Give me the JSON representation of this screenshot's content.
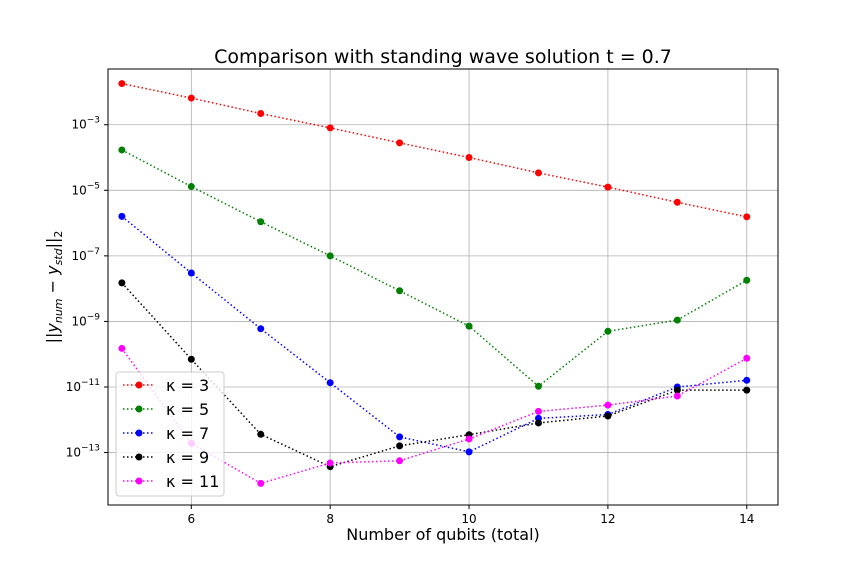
{
  "chart_data": {
    "type": "line",
    "title": "Comparison with standing wave solution t = 0.7",
    "xlabel": "Number of qubits (total)",
    "ylabel": "||y_num − y_std||₂",
    "yscale": "log",
    "xlim": [
      4.8,
      14.45
    ],
    "ylim_exp": [
      -14.6,
      -1.3
    ],
    "x_ticks": [
      6,
      8,
      10,
      12,
      14
    ],
    "y_tick_exponents": [
      -13,
      -11,
      -9,
      -7,
      -5,
      -3
    ],
    "grid": true,
    "legend_placement": "lower-left",
    "x": [
      5,
      6,
      7,
      8,
      9,
      10,
      11,
      12,
      13,
      14
    ],
    "series": [
      {
        "name": "κ = 3",
        "color": "#ff0000",
        "values": [
          0.018,
          0.0065,
          0.0022,
          0.0008,
          0.00028,
          0.0001,
          3.4e-05,
          1.25e-05,
          4.3e-06,
          1.55e-06
        ]
      },
      {
        "name": "κ = 5",
        "color": "#008000",
        "values": [
          0.00017,
          1.3e-05,
          1.1e-06,
          1e-07,
          8.6e-09,
          7.2e-10,
          1.05e-11,
          5e-10,
          1.1e-09,
          1.8e-08
        ]
      },
      {
        "name": "κ = 7",
        "color": "#0000ff",
        "values": [
          1.6e-06,
          3e-08,
          6e-10,
          1.35e-11,
          3e-13,
          1.05e-13,
          1.1e-12,
          1.45e-12,
          1e-11,
          1.6e-11
        ]
      },
      {
        "name": "κ = 9",
        "color": "#000000",
        "values": [
          1.5e-08,
          7e-11,
          3.6e-13,
          3.7e-14,
          1.6e-13,
          3.5e-13,
          8e-13,
          1.3e-12,
          8e-12,
          8e-12
        ]
      },
      {
        "name": "κ = 11",
        "color": "#ff00ff",
        "values": [
          1.5e-10,
          1.9e-13,
          1.15e-14,
          4.8e-14,
          5.6e-14,
          2.6e-13,
          1.8e-12,
          2.8e-12,
          5.3e-12,
          7.5e-11
        ]
      }
    ]
  }
}
